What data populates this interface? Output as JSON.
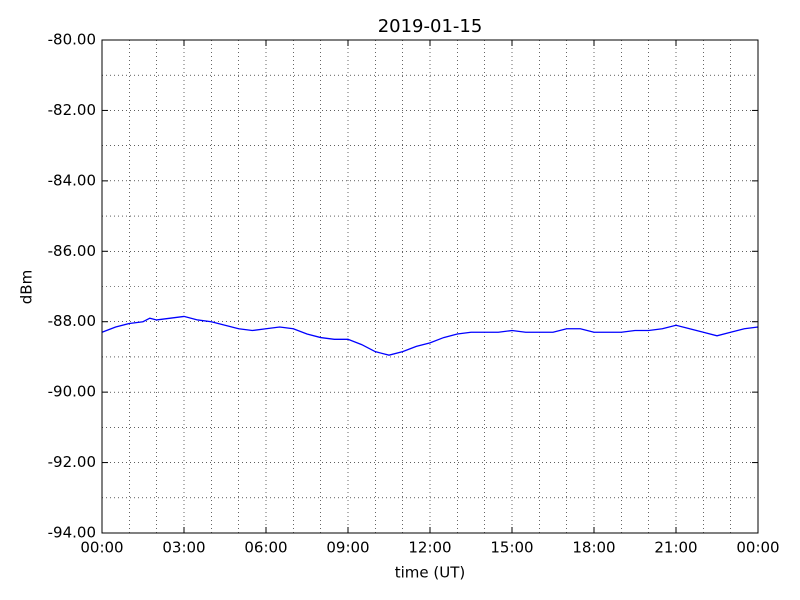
{
  "chart_data": {
    "type": "line",
    "title": "2019-01-15",
    "xlabel": "time (UT)",
    "ylabel": "dBm",
    "xlim": [
      0,
      24
    ],
    "ylim": [
      -94,
      -80
    ],
    "xticks": [
      {
        "value": 0,
        "label": "00:00"
      },
      {
        "value": 3,
        "label": "03:00"
      },
      {
        "value": 6,
        "label": "06:00"
      },
      {
        "value": 9,
        "label": "09:00"
      },
      {
        "value": 12,
        "label": "12:00"
      },
      {
        "value": 15,
        "label": "15:00"
      },
      {
        "value": 18,
        "label": "18:00"
      },
      {
        "value": 21,
        "label": "21:00"
      },
      {
        "value": 24,
        "label": "00:00"
      }
    ],
    "yticks": [
      {
        "value": -94,
        "label": "-94.00"
      },
      {
        "value": -92,
        "label": "-92.00"
      },
      {
        "value": -90,
        "label": "-90.00"
      },
      {
        "value": -88,
        "label": "-88.00"
      },
      {
        "value": -86,
        "label": "-86.00"
      },
      {
        "value": -84,
        "label": "-84.00"
      },
      {
        "value": -82,
        "label": "-82.00"
      },
      {
        "value": -80,
        "label": "-80.00"
      }
    ],
    "xgrid": [
      1,
      2,
      3,
      4,
      5,
      6,
      7,
      8,
      9,
      10,
      11,
      12,
      13,
      14,
      15,
      16,
      17,
      18,
      19,
      20,
      21,
      22,
      23
    ],
    "ygrid": [
      -93,
      -92,
      -91,
      -90,
      -89,
      -88,
      -87,
      -86,
      -85,
      -84,
      -83,
      -82,
      -81
    ],
    "grid": true,
    "series": [
      {
        "color": "#0000ff",
        "x": [
          0,
          0.5,
          1,
          1.5,
          1.75,
          2,
          2.5,
          3,
          3.5,
          4,
          4.5,
          5,
          5.5,
          6,
          6.5,
          7,
          7.5,
          8,
          8.5,
          9,
          9.5,
          10,
          10.5,
          11,
          11.5,
          12,
          12.5,
          13,
          13.5,
          14,
          14.5,
          15,
          15.5,
          16,
          16.5,
          17,
          17.5,
          18,
          18.5,
          19,
          19.5,
          20,
          20.5,
          21,
          21.5,
          22,
          22.5,
          23,
          23.5,
          24
        ],
        "values": [
          -88.3,
          -88.15,
          -88.05,
          -88.0,
          -87.9,
          -87.95,
          -87.9,
          -87.85,
          -87.95,
          -88.0,
          -88.1,
          -88.2,
          -88.25,
          -88.2,
          -88.15,
          -88.2,
          -88.35,
          -88.45,
          -88.5,
          -88.5,
          -88.65,
          -88.85,
          -88.95,
          -88.85,
          -88.7,
          -88.6,
          -88.45,
          -88.35,
          -88.3,
          -88.3,
          -88.3,
          -88.25,
          -88.3,
          -88.3,
          -88.3,
          -88.2,
          -88.2,
          -88.3,
          -88.3,
          -88.3,
          -88.25,
          -88.25,
          -88.2,
          -88.1,
          -88.2,
          -88.3,
          -88.4,
          -88.3,
          -88.2,
          -88.15
        ]
      }
    ]
  }
}
